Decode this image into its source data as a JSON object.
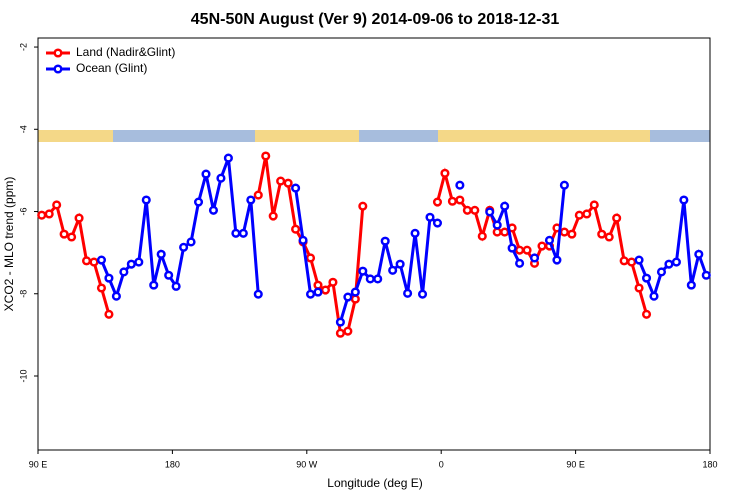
{
  "chart_data": {
    "type": "line",
    "title": "45N-50N August (Ver 9)   2014-09-06 to 2018-12-31",
    "x_label": "Longitude (deg E)",
    "y_label": "XCO2 - MLO trend (ppm)",
    "x": [
      92.5,
      97.5,
      102.5,
      107.5,
      112.5,
      117.5,
      122.5,
      127.5,
      132.5,
      137.5,
      142.5,
      147.5,
      152.5,
      157.5,
      162.5,
      167.5,
      172.5,
      177.5,
      182.5,
      187.5,
      192.5,
      197.5,
      202.5,
      207.5,
      212.5,
      217.5,
      222.5,
      227.5,
      232.5,
      237.5,
      242.5,
      247.5,
      252.5,
      257.5,
      262.5,
      267.5,
      272.5,
      277.5,
      282.5,
      287.5,
      292.5,
      297.5,
      302.5,
      307.5,
      312.5,
      317.5,
      322.5,
      327.5,
      332.5,
      337.5,
      342.5,
      347.5,
      352.5,
      357.5,
      362.5,
      367.5,
      372.5,
      377.5,
      382.5,
      387.5,
      392.5,
      397.5,
      402.5,
      407.5,
      412.5,
      417.5,
      422.5,
      427.5,
      432.5,
      437.5,
      442.5,
      447.5,
      452.5,
      457.5,
      462.5,
      467.5,
      472.5,
      477.5,
      482.5,
      487.5,
      492.5,
      497.5,
      502.5,
      507.5,
      512.5,
      517.5,
      522.5,
      527.5,
      532.5,
      537.5
    ],
    "series": [
      {
        "name": "Land (Nadir&Glint)",
        "color": "#ff0000",
        "values": [
          -6.09,
          -6.06,
          -5.84,
          -6.55,
          -6.62,
          -6.16,
          -7.2,
          -7.23,
          -7.86,
          -8.5,
          null,
          null,
          null,
          null,
          null,
          null,
          null,
          null,
          null,
          null,
          null,
          null,
          null,
          null,
          null,
          null,
          null,
          null,
          null,
          -5.6,
          -4.65,
          -6.11,
          -5.26,
          -5.31,
          -6.43,
          -6.74,
          -7.13,
          -7.79,
          -7.91,
          -7.72,
          -8.96,
          -8.91,
          -8.13,
          -5.87,
          null,
          null,
          null,
          null,
          null,
          null,
          null,
          null,
          null,
          -5.77,
          -5.07,
          -5.75,
          -5.72,
          -5.97,
          -5.97,
          -6.6,
          -5.97,
          -6.5,
          -6.5,
          -6.4,
          -6.94,
          -6.94,
          -7.26,
          -6.84,
          -6.84,
          -6.4,
          -6.5,
          -6.55,
          -6.09,
          -6.06,
          -5.84,
          -6.55,
          -6.62,
          -6.16,
          -7.2,
          -7.23,
          -7.86,
          -8.5,
          null,
          null,
          null,
          null,
          null,
          null,
          null,
          null
        ]
      },
      {
        "name": "Ocean (Glint)",
        "color": "#0000ff",
        "values": [
          null,
          null,
          null,
          null,
          null,
          null,
          null,
          null,
          -7.18,
          -7.62,
          -8.06,
          -7.47,
          -7.28,
          -7.23,
          -5.72,
          -7.79,
          -7.04,
          -7.55,
          -7.82,
          -6.87,
          -6.74,
          -5.77,
          -5.09,
          -5.97,
          -5.19,
          -4.7,
          -6.53,
          -6.53,
          -5.72,
          -8.01,
          null,
          null,
          null,
          null,
          -5.43,
          -6.7,
          -8.01,
          -7.96,
          null,
          null,
          -8.69,
          -8.08,
          -7.96,
          -7.45,
          -7.64,
          -7.64,
          -6.72,
          -7.43,
          -7.28,
          -7.99,
          -6.53,
          -8.01,
          -6.14,
          -6.28,
          null,
          null,
          -5.36,
          null,
          null,
          null,
          -6.01,
          -6.33,
          -5.87,
          -6.89,
          -7.26,
          null,
          -7.13,
          null,
          -6.7,
          -7.18,
          -5.36,
          null,
          null,
          null,
          null,
          null,
          null,
          null,
          null,
          null,
          -7.18,
          -7.62,
          -8.06,
          -7.47,
          -7.28,
          -7.23,
          -5.72,
          -7.79,
          -7.04,
          -7.55
        ]
      }
    ],
    "xlim": [
      90,
      540
    ],
    "xticks": [
      {
        "value": 90,
        "label": "90 E"
      },
      180,
      {
        "value": 270,
        "label": "90 W"
      },
      {
        "value": 360,
        "label": "0"
      },
      {
        "value": 450,
        "label": "90 E"
      },
      {
        "value": 540,
        "label": "180"
      }
    ],
    "ylim": [
      -11.8,
      -1.78
    ],
    "yticks": [
      -2,
      -4,
      -6,
      -8,
      -10
    ],
    "grid": false,
    "legend": "upper left"
  }
}
